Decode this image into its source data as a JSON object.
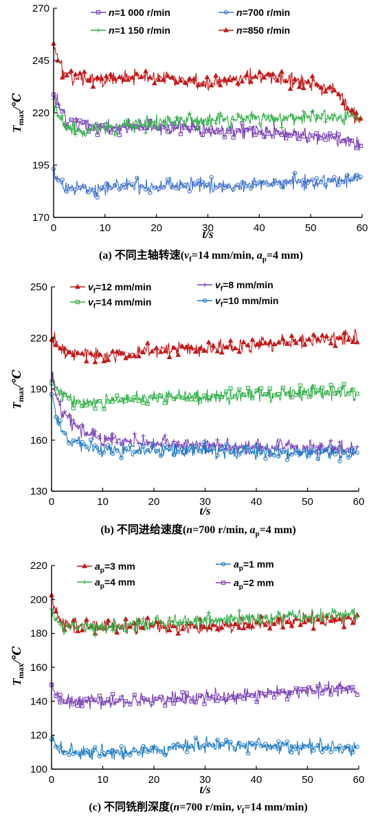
{
  "chart_data": [
    {
      "type": "line",
      "caption": "(a) 不同主轴转速(v_f=14 mm/min, a_p=4 mm)",
      "xlabel": "t/s",
      "ylabel": "T_max/℃",
      "xlim": [
        0,
        60
      ],
      "ylim": [
        170,
        270
      ],
      "xticks": [
        "0",
        "10",
        "20",
        "30",
        "40",
        "50",
        "60"
      ],
      "yticks": [
        "170",
        "195",
        "220",
        "245",
        "270"
      ],
      "legend_position": "top",
      "series": [
        {
          "name": "n=1 000 r/min",
          "color": "#7a3fb5",
          "marker": "square",
          "x": [
            0,
            1,
            2,
            4,
            6,
            8,
            10,
            15,
            20,
            25,
            30,
            35,
            40,
            45,
            50,
            55,
            58,
            60
          ],
          "values": [
            228,
            224,
            219,
            215,
            214,
            213,
            213,
            213,
            213,
            213,
            212,
            212,
            211,
            210,
            209,
            208,
            206,
            204
          ]
        },
        {
          "name": "n=700 r/min",
          "color": "#3a6fcc",
          "marker": "circle",
          "x": [
            0,
            1,
            2,
            4,
            6,
            8,
            10,
            15,
            20,
            25,
            30,
            35,
            40,
            45,
            50,
            55,
            58,
            60
          ],
          "values": [
            192,
            188,
            186,
            184,
            184,
            183,
            184,
            185,
            185,
            185,
            185,
            185,
            186,
            187,
            187,
            188,
            188,
            188
          ]
        },
        {
          "name": "n=1 150 r/min",
          "color": "#2fae46",
          "marker": "plus",
          "x": [
            0,
            1,
            2,
            4,
            6,
            8,
            10,
            15,
            20,
            25,
            30,
            35,
            40,
            45,
            50,
            55,
            58,
            60
          ],
          "values": [
            225,
            218,
            214,
            212,
            212,
            212,
            213,
            214,
            215,
            216,
            216,
            217,
            217,
            217,
            218,
            218,
            218,
            218
          ]
        },
        {
          "name": "n=850 r/min",
          "color": "#c41818",
          "marker": "triangle",
          "x": [
            0,
            1,
            2,
            4,
            6,
            8,
            10,
            15,
            20,
            25,
            30,
            35,
            40,
            45,
            50,
            55,
            58,
            60
          ],
          "values": [
            252,
            245,
            239,
            237,
            236,
            236,
            236,
            237,
            237,
            236,
            234,
            236,
            238,
            236,
            234,
            230,
            220,
            215
          ]
        }
      ]
    },
    {
      "type": "line",
      "caption": "(b) 不同进给速度(n=700 r/min, a_p=4 mm)",
      "xlabel": "t/s",
      "ylabel": "T_max/℃",
      "xlim": [
        0,
        60
      ],
      "ylim": [
        130,
        250
      ],
      "xticks": [
        "0",
        "10",
        "20",
        "30",
        "40",
        "50",
        "60"
      ],
      "yticks": [
        "130",
        "160",
        "190",
        "220",
        "250"
      ],
      "legend_position": "top",
      "series": [
        {
          "name": "v_f=12 mm/min",
          "color": "#c41818",
          "marker": "triangle",
          "x": [
            0,
            1,
            2,
            4,
            6,
            8,
            10,
            15,
            20,
            25,
            30,
            35,
            40,
            45,
            50,
            55,
            58,
            60
          ],
          "values": [
            222,
            216,
            213,
            212,
            211,
            210,
            210,
            211,
            213,
            214,
            213,
            215,
            216,
            217,
            218,
            219,
            220,
            221
          ]
        },
        {
          "name": "v_f=14 mm/min",
          "color": "#2fae46",
          "marker": "square",
          "x": [
            0,
            1,
            2,
            4,
            6,
            8,
            10,
            15,
            20,
            25,
            30,
            35,
            40,
            45,
            50,
            55,
            58,
            60
          ],
          "values": [
            198,
            190,
            186,
            184,
            183,
            183,
            183,
            184,
            185,
            186,
            185,
            186,
            187,
            187,
            188,
            188,
            188,
            187
          ]
        },
        {
          "name": "v_f=8 mm/min",
          "color": "#7a3fb5",
          "marker": "plus",
          "x": [
            0,
            1,
            2,
            4,
            6,
            8,
            10,
            15,
            20,
            25,
            30,
            35,
            40,
            45,
            50,
            55,
            58,
            60
          ],
          "values": [
            200,
            185,
            178,
            170,
            165,
            163,
            161,
            159,
            158,
            157,
            157,
            156,
            156,
            156,
            155,
            155,
            155,
            155
          ]
        },
        {
          "name": "v_f=10 mm/min",
          "color": "#1c7ac4",
          "marker": "circle",
          "x": [
            0,
            1,
            2,
            4,
            6,
            8,
            10,
            15,
            20,
            25,
            30,
            35,
            40,
            45,
            50,
            55,
            58,
            60
          ],
          "values": [
            190,
            172,
            165,
            160,
            158,
            156,
            155,
            154,
            154,
            154,
            154,
            153,
            153,
            153,
            153,
            153,
            153,
            153
          ]
        }
      ]
    },
    {
      "type": "line",
      "caption": "(c) 不同铣削深度(n=700 r/min, v_f=14 mm/min)",
      "xlabel": "t/s",
      "ylabel": "T_max/℃",
      "xlim": [
        0,
        60
      ],
      "ylim": [
        100,
        220
      ],
      "xticks": [
        "0",
        "10",
        "20",
        "30",
        "40",
        "50",
        "60"
      ],
      "yticks": [
        "100",
        "120",
        "140",
        "160",
        "180",
        "200",
        "220"
      ],
      "legend_position": "top",
      "series": [
        {
          "name": "a_p=3 mm",
          "color": "#c41818",
          "marker": "triangle",
          "x": [
            0,
            1,
            2,
            4,
            6,
            8,
            10,
            15,
            20,
            25,
            30,
            35,
            40,
            45,
            50,
            55,
            58,
            60
          ],
          "values": [
            203,
            192,
            186,
            184,
            184,
            184,
            184,
            184,
            184,
            184,
            184,
            185,
            186,
            187,
            188,
            188,
            189,
            190
          ]
        },
        {
          "name": "a_p=4 mm",
          "color": "#2fae46",
          "marker": "plus",
          "x": [
            0,
            1,
            2,
            4,
            6,
            8,
            10,
            15,
            20,
            25,
            30,
            35,
            40,
            45,
            50,
            55,
            58,
            60
          ],
          "values": [
            195,
            188,
            184,
            183,
            183,
            183,
            184,
            185,
            186,
            187,
            187,
            188,
            189,
            190,
            190,
            191,
            191,
            191
          ]
        },
        {
          "name": "a_p=1 mm",
          "color": "#1c7ac4",
          "marker": "circle",
          "x": [
            0,
            1,
            2,
            4,
            6,
            8,
            10,
            15,
            20,
            25,
            30,
            35,
            40,
            45,
            50,
            55,
            58,
            60
          ],
          "values": [
            118,
            113,
            111,
            110,
            110,
            110,
            110,
            110,
            111,
            113,
            114,
            114,
            114,
            114,
            113,
            113,
            113,
            113
          ]
        },
        {
          "name": "a_p=2 mm",
          "color": "#7a3fb5",
          "marker": "square",
          "x": [
            0,
            1,
            2,
            4,
            6,
            8,
            10,
            15,
            20,
            25,
            30,
            35,
            40,
            45,
            50,
            55,
            58,
            60
          ],
          "values": [
            150,
            143,
            140,
            140,
            140,
            140,
            139,
            140,
            141,
            142,
            143,
            143,
            144,
            145,
            146,
            147,
            147,
            146
          ]
        }
      ]
    }
  ]
}
